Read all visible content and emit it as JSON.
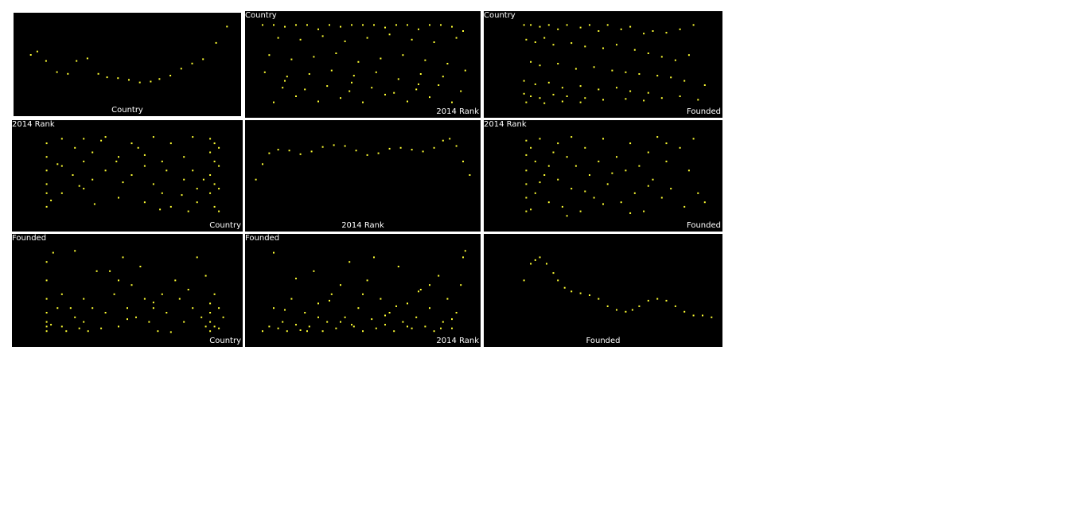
{
  "colors": {
    "background": "#000000",
    "points": "#ffff33",
    "labels": "#ffffff",
    "grid_gap": "#ffffff"
  },
  "variables": [
    "Country",
    "2014 Rank",
    "Founded"
  ],
  "chart_data": [
    {
      "type": "line",
      "row": 0,
      "col": 0,
      "xlabel": "Country",
      "ylabel": "",
      "kind": "density",
      "x": [
        0.05,
        0.08,
        0.12,
        0.17,
        0.22,
        0.26,
        0.31,
        0.36,
        0.4,
        0.45,
        0.5,
        0.55,
        0.6,
        0.64,
        0.69,
        0.74,
        0.79,
        0.84,
        0.9,
        0.95
      ],
      "y": [
        0.62,
        0.66,
        0.55,
        0.42,
        0.4,
        0.55,
        0.58,
        0.4,
        0.36,
        0.35,
        0.33,
        0.3,
        0.31,
        0.34,
        0.38,
        0.46,
        0.52,
        0.57,
        0.76,
        0.95
      ]
    },
    {
      "type": "scatter",
      "row": 0,
      "col": 1,
      "xlabel": "2014 Rank",
      "ylabel": "Country",
      "x": [
        0.05,
        0.1,
        0.15,
        0.2,
        0.25,
        0.3,
        0.35,
        0.4,
        0.45,
        0.5,
        0.55,
        0.6,
        0.65,
        0.7,
        0.75,
        0.8,
        0.85,
        0.9,
        0.95,
        0.12,
        0.22,
        0.32,
        0.42,
        0.52,
        0.62,
        0.72,
        0.82,
        0.92,
        0.08,
        0.18,
        0.28,
        0.38,
        0.48,
        0.58,
        0.68,
        0.78,
        0.88,
        0.06,
        0.16,
        0.26,
        0.36,
        0.46,
        0.56,
        0.66,
        0.76,
        0.86,
        0.96,
        0.14,
        0.24,
        0.34,
        0.44,
        0.54,
        0.64,
        0.74,
        0.84,
        0.94,
        0.1,
        0.3,
        0.5,
        0.7,
        0.9,
        0.2,
        0.4,
        0.6,
        0.8,
        0.15,
        0.45,
        0.75
      ],
      "y": [
        0.95,
        0.95,
        0.93,
        0.95,
        0.95,
        0.9,
        0.95,
        0.93,
        0.95,
        0.95,
        0.95,
        0.92,
        0.95,
        0.95,
        0.9,
        0.95,
        0.95,
        0.93,
        0.88,
        0.8,
        0.78,
        0.82,
        0.76,
        0.8,
        0.84,
        0.78,
        0.75,
        0.8,
        0.6,
        0.55,
        0.58,
        0.62,
        0.52,
        0.56,
        0.6,
        0.54,
        0.5,
        0.4,
        0.35,
        0.38,
        0.42,
        0.36,
        0.4,
        0.32,
        0.38,
        0.35,
        0.42,
        0.22,
        0.2,
        0.24,
        0.18,
        0.22,
        0.16,
        0.2,
        0.25,
        0.18,
        0.05,
        0.06,
        0.05,
        0.06,
        0.05,
        0.12,
        0.1,
        0.14,
        0.11,
        0.3,
        0.28,
        0.26
      ]
    },
    {
      "type": "scatter",
      "row": 0,
      "col": 2,
      "xlabel": "Founded",
      "ylabel": "Country",
      "x": [
        0.15,
        0.18,
        0.22,
        0.26,
        0.3,
        0.34,
        0.4,
        0.44,
        0.48,
        0.52,
        0.58,
        0.62,
        0.68,
        0.72,
        0.78,
        0.84,
        0.9,
        0.16,
        0.2,
        0.24,
        0.28,
        0.36,
        0.42,
        0.5,
        0.56,
        0.64,
        0.7,
        0.76,
        0.82,
        0.88,
        0.18,
        0.22,
        0.3,
        0.38,
        0.46,
        0.54,
        0.6,
        0.66,
        0.74,
        0.8,
        0.86,
        0.95,
        0.15,
        0.2,
        0.26,
        0.32,
        0.4,
        0.48,
        0.56,
        0.62,
        0.7,
        0.15,
        0.18,
        0.22,
        0.28,
        0.34,
        0.42,
        0.5,
        0.6,
        0.68,
        0.76,
        0.84,
        0.92,
        0.16,
        0.24,
        0.32,
        0.4
      ],
      "y": [
        0.95,
        0.95,
        0.93,
        0.95,
        0.9,
        0.95,
        0.92,
        0.95,
        0.88,
        0.95,
        0.9,
        0.93,
        0.85,
        0.88,
        0.86,
        0.9,
        0.95,
        0.78,
        0.75,
        0.8,
        0.72,
        0.74,
        0.7,
        0.68,
        0.72,
        0.66,
        0.62,
        0.58,
        0.54,
        0.6,
        0.52,
        0.48,
        0.5,
        0.44,
        0.46,
        0.42,
        0.4,
        0.38,
        0.36,
        0.34,
        0.3,
        0.25,
        0.3,
        0.26,
        0.28,
        0.22,
        0.24,
        0.2,
        0.22,
        0.18,
        0.16,
        0.15,
        0.12,
        0.1,
        0.14,
        0.12,
        0.1,
        0.08,
        0.09,
        0.07,
        0.1,
        0.12,
        0.08,
        0.05,
        0.04,
        0.06,
        0.05
      ]
    },
    {
      "type": "scatter",
      "row": 1,
      "col": 0,
      "xlabel": "Country",
      "ylabel": "2014 Rank",
      "x": [
        0.13,
        0.13,
        0.13,
        0.13,
        0.13,
        0.13,
        0.2,
        0.2,
        0.2,
        0.26,
        0.3,
        0.3,
        0.3,
        0.34,
        0.34,
        0.4,
        0.4,
        0.46,
        0.46,
        0.52,
        0.52,
        0.58,
        0.58,
        0.62,
        0.62,
        0.66,
        0.66,
        0.7,
        0.7,
        0.76,
        0.76,
        0.8,
        0.8,
        0.82,
        0.82,
        0.88,
        0.88,
        0.88,
        0.88,
        0.9,
        0.9,
        0.9,
        0.9,
        0.92,
        0.92,
        0.92,
        0.92,
        0.15,
        0.25,
        0.35,
        0.45,
        0.55,
        0.65,
        0.75,
        0.85,
        0.18,
        0.28,
        0.38,
        0.48,
        0.58,
        0.68,
        0.78
      ],
      "y": [
        0.85,
        0.7,
        0.55,
        0.4,
        0.3,
        0.15,
        0.9,
        0.6,
        0.3,
        0.8,
        0.9,
        0.65,
        0.35,
        0.75,
        0.45,
        0.92,
        0.55,
        0.7,
        0.25,
        0.85,
        0.5,
        0.6,
        0.2,
        0.92,
        0.4,
        0.65,
        0.3,
        0.85,
        0.15,
        0.7,
        0.45,
        0.92,
        0.55,
        0.35,
        0.2,
        0.9,
        0.75,
        0.5,
        0.3,
        0.85,
        0.65,
        0.4,
        0.15,
        0.8,
        0.6,
        0.35,
        0.1,
        0.22,
        0.5,
        0.18,
        0.65,
        0.8,
        0.12,
        0.28,
        0.45,
        0.62,
        0.38,
        0.88,
        0.42,
        0.72,
        0.55,
        0.1
      ],
      "ticks_hidden": true
    },
    {
      "type": "line",
      "row": 1,
      "col": 1,
      "xlabel": "2014 Rank",
      "ylabel": "",
      "kind": "density",
      "x": [
        0.02,
        0.05,
        0.08,
        0.12,
        0.17,
        0.22,
        0.27,
        0.32,
        0.37,
        0.42,
        0.47,
        0.52,
        0.57,
        0.62,
        0.67,
        0.72,
        0.77,
        0.82,
        0.86,
        0.89,
        0.92,
        0.95,
        0.98
      ],
      "y": [
        0.45,
        0.62,
        0.74,
        0.78,
        0.77,
        0.73,
        0.76,
        0.81,
        0.83,
        0.82,
        0.77,
        0.72,
        0.74,
        0.79,
        0.8,
        0.78,
        0.76,
        0.8,
        0.88,
        0.9,
        0.82,
        0.65,
        0.5
      ]
    },
    {
      "type": "scatter",
      "row": 1,
      "col": 2,
      "xlabel": "Founded",
      "ylabel": "2014 Rank",
      "x": [
        0.16,
        0.16,
        0.16,
        0.16,
        0.16,
        0.16,
        0.18,
        0.2,
        0.2,
        0.22,
        0.24,
        0.26,
        0.28,
        0.3,
        0.3,
        0.32,
        0.34,
        0.36,
        0.36,
        0.38,
        0.4,
        0.42,
        0.44,
        0.46,
        0.48,
        0.5,
        0.52,
        0.56,
        0.58,
        0.6,
        0.62,
        0.64,
        0.66,
        0.68,
        0.7,
        0.72,
        0.74,
        0.76,
        0.78,
        0.8,
        0.84,
        0.86,
        0.88,
        0.9,
        0.92,
        0.95,
        0.18,
        0.22,
        0.26,
        0.34,
        0.42,
        0.5,
        0.54,
        0.62,
        0.7,
        0.78
      ],
      "y": [
        0.88,
        0.72,
        0.55,
        0.4,
        0.25,
        0.1,
        0.8,
        0.65,
        0.3,
        0.9,
        0.5,
        0.2,
        0.75,
        0.85,
        0.45,
        0.15,
        0.7,
        0.92,
        0.35,
        0.6,
        0.1,
        0.8,
        0.5,
        0.25,
        0.65,
        0.9,
        0.4,
        0.7,
        0.2,
        0.55,
        0.85,
        0.3,
        0.6,
        0.1,
        0.75,
        0.45,
        0.92,
        0.25,
        0.65,
        0.35,
        0.8,
        0.15,
        0.55,
        0.9,
        0.3,
        0.2,
        0.12,
        0.42,
        0.6,
        0.05,
        0.32,
        0.18,
        0.52,
        0.08,
        0.38,
        0.85
      ],
      "ticks_hidden": true
    },
    {
      "type": "scatter",
      "row": 2,
      "col": 0,
      "xlabel": "Country",
      "ylabel": "Founded",
      "x": [
        0.13,
        0.13,
        0.13,
        0.13,
        0.13,
        0.13,
        0.13,
        0.16,
        0.18,
        0.2,
        0.2,
        0.22,
        0.26,
        0.26,
        0.28,
        0.3,
        0.3,
        0.32,
        0.34,
        0.38,
        0.4,
        0.42,
        0.44,
        0.46,
        0.46,
        0.48,
        0.5,
        0.52,
        0.54,
        0.56,
        0.58,
        0.6,
        0.62,
        0.64,
        0.66,
        0.68,
        0.72,
        0.74,
        0.76,
        0.78,
        0.8,
        0.82,
        0.84,
        0.86,
        0.88,
        0.88,
        0.88,
        0.88,
        0.9,
        0.9,
        0.92,
        0.92,
        0.94,
        0.15,
        0.24,
        0.36,
        0.5,
        0.62,
        0.7,
        0.86
      ],
      "y": [
        0.8,
        0.6,
        0.4,
        0.25,
        0.15,
        0.1,
        0.05,
        0.9,
        0.3,
        0.1,
        0.45,
        0.05,
        0.92,
        0.2,
        0.08,
        0.4,
        0.15,
        0.05,
        0.3,
        0.08,
        0.25,
        0.7,
        0.45,
        0.6,
        0.1,
        0.85,
        0.3,
        0.55,
        0.2,
        0.75,
        0.4,
        0.15,
        0.3,
        0.05,
        0.45,
        0.25,
        0.6,
        0.4,
        0.15,
        0.5,
        0.3,
        0.85,
        0.2,
        0.1,
        0.35,
        0.25,
        0.15,
        0.05,
        0.45,
        0.1,
        0.3,
        0.08,
        0.2,
        0.12,
        0.3,
        0.7,
        0.18,
        0.36,
        0.04,
        0.65
      ],
      "ticks_hidden": true
    },
    {
      "type": "scatter",
      "row": 2,
      "col": 1,
      "xlabel": "2014 Rank",
      "ylabel": "Founded",
      "x": [
        0.05,
        0.08,
        0.1,
        0.12,
        0.14,
        0.16,
        0.18,
        0.2,
        0.22,
        0.24,
        0.26,
        0.28,
        0.3,
        0.32,
        0.34,
        0.36,
        0.38,
        0.4,
        0.42,
        0.44,
        0.46,
        0.48,
        0.5,
        0.52,
        0.54,
        0.56,
        0.58,
        0.6,
        0.62,
        0.64,
        0.66,
        0.68,
        0.7,
        0.72,
        0.74,
        0.76,
        0.78,
        0.8,
        0.82,
        0.84,
        0.86,
        0.88,
        0.9,
        0.92,
        0.94,
        0.96,
        0.1,
        0.2,
        0.3,
        0.4,
        0.5,
        0.6,
        0.7,
        0.8,
        0.9,
        0.15,
        0.25,
        0.35,
        0.45,
        0.55,
        0.65,
        0.75,
        0.85,
        0.95
      ],
      "y": [
        0.05,
        0.1,
        0.3,
        0.08,
        0.15,
        0.05,
        0.4,
        0.12,
        0.06,
        0.25,
        0.1,
        0.7,
        0.35,
        0.05,
        0.15,
        0.45,
        0.08,
        0.55,
        0.2,
        0.8,
        0.1,
        0.3,
        0.05,
        0.6,
        0.18,
        0.08,
        0.4,
        0.12,
        0.25,
        0.05,
        0.75,
        0.15,
        0.35,
        0.08,
        0.2,
        0.5,
        0.1,
        0.3,
        0.05,
        0.65,
        0.15,
        0.4,
        0.08,
        0.25,
        0.55,
        0.92,
        0.9,
        0.62,
        0.2,
        0.15,
        0.45,
        0.22,
        0.1,
        0.55,
        0.18,
        0.28,
        0.05,
        0.38,
        0.12,
        0.85,
        0.32,
        0.48,
        0.08,
        0.85
      ],
      "ticks_hidden": true
    },
    {
      "type": "line",
      "row": 2,
      "col": 2,
      "xlabel": "Founded",
      "ylabel": "",
      "kind": "density",
      "x": [
        0.15,
        0.18,
        0.2,
        0.22,
        0.25,
        0.28,
        0.3,
        0.33,
        0.36,
        0.4,
        0.44,
        0.48,
        0.52,
        0.56,
        0.6,
        0.63,
        0.66,
        0.7,
        0.74,
        0.78,
        0.82,
        0.86,
        0.9,
        0.94,
        0.98
      ],
      "y": [
        0.6,
        0.78,
        0.82,
        0.85,
        0.78,
        0.68,
        0.6,
        0.52,
        0.48,
        0.46,
        0.44,
        0.4,
        0.32,
        0.28,
        0.26,
        0.28,
        0.32,
        0.38,
        0.4,
        0.38,
        0.32,
        0.26,
        0.22,
        0.22,
        0.2
      ]
    }
  ]
}
